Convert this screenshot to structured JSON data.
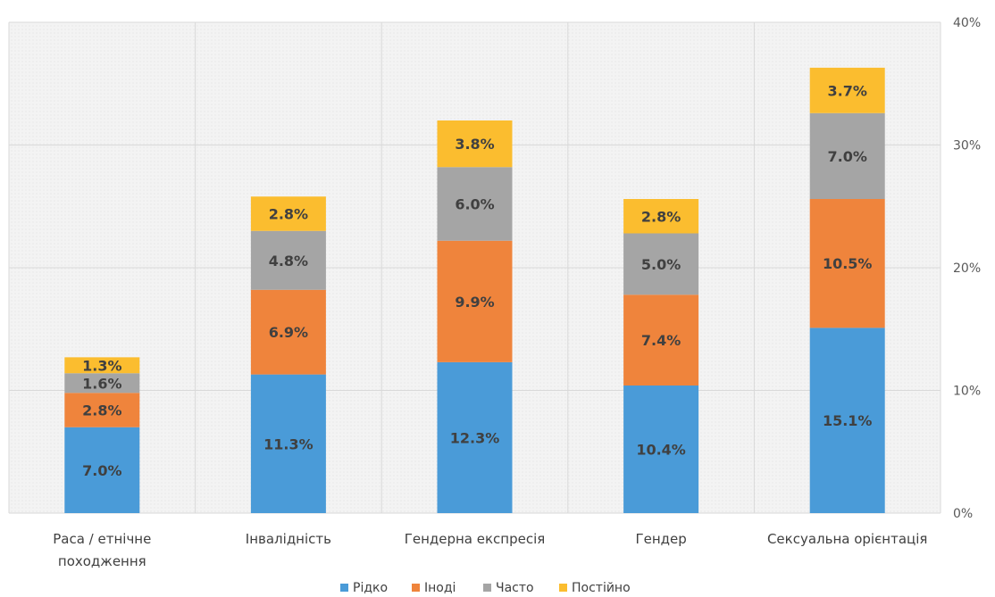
{
  "chart_data": {
    "type": "bar",
    "stacked": true,
    "categories": [
      [
        "Раса / етнічне",
        "походження"
      ],
      [
        "Інвалідність"
      ],
      [
        "Гендерна експресія"
      ],
      [
        "Гендер"
      ],
      [
        "Сексуальна орієнтація"
      ]
    ],
    "series": [
      {
        "name": "Рідко",
        "color": "#4a9bd8",
        "values": [
          7.0,
          11.3,
          12.3,
          10.4,
          15.1
        ],
        "labels": [
          "7.0%",
          "11.3%",
          "12.3%",
          "10.4%",
          "15.1%"
        ]
      },
      {
        "name": "Іноді",
        "color": "#ef843c",
        "values": [
          2.8,
          6.9,
          9.9,
          7.4,
          10.5
        ],
        "labels": [
          "2.8%",
          "6.9%",
          "9.9%",
          "7.4%",
          "10.5%"
        ]
      },
      {
        "name": "Часто",
        "color": "#a5a5a5",
        "values": [
          1.6,
          4.8,
          6.0,
          5.0,
          7.0
        ],
        "labels": [
          "1.6%",
          "4.8%",
          "6.0%",
          "5.0%",
          "7.0%"
        ]
      },
      {
        "name": "Постійно",
        "color": "#fbbd2f",
        "values": [
          1.3,
          2.8,
          3.8,
          2.8,
          3.7
        ],
        "labels": [
          "1.3%",
          "2.8%",
          "3.8%",
          "2.8%",
          "3.7%"
        ]
      }
    ],
    "y_ticks": [
      "0%",
      "10%",
      "20%",
      "30%",
      "40%"
    ],
    "ylim": [
      0,
      40
    ],
    "y_axis_position": "right",
    "grid": true,
    "legend_position": "bottom",
    "title": "",
    "xlabel": "",
    "ylabel": ""
  }
}
